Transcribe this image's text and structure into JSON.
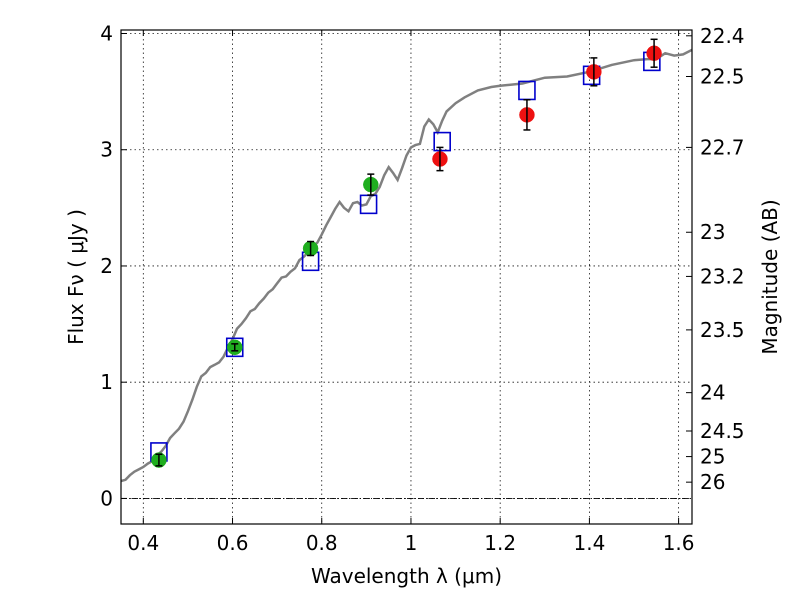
{
  "chart_data": {
    "type": "scatter",
    "title": "",
    "xlabel": "Wavelength  λ (μm)",
    "ylabel": "Flux  Fν  ( μJy )",
    "ylabel_right": "Magnitude (AB)",
    "xlim": [
      0.35,
      1.63
    ],
    "ylim": [
      -0.22,
      4.03
    ],
    "grid": true,
    "x_ticks": [
      0.4,
      0.6,
      0.8,
      1.0,
      1.2,
      1.4,
      1.6
    ],
    "x_tick_labels": [
      "0.4",
      "0.6",
      "0.8",
      "1",
      "1.2",
      "1.4",
      "1.6"
    ],
    "y_ticks": [
      0,
      1,
      2,
      3,
      4
    ],
    "y_tick_labels": [
      "0",
      "1",
      "2",
      "3",
      "4"
    ],
    "right_ticks": [
      {
        "label": "22.4",
        "flux": 3.98
      },
      {
        "label": "22.5",
        "flux": 3.63
      },
      {
        "label": "22.7",
        "flux": 3.02
      },
      {
        "label": "23",
        "flux": 2.29
      },
      {
        "label": "23.2",
        "flux": 1.91
      },
      {
        "label": "23.5",
        "flux": 1.45
      },
      {
        "label": "24",
        "flux": 0.91
      },
      {
        "label": "24.5",
        "flux": 0.58
      },
      {
        "label": "25",
        "flux": 0.36
      },
      {
        "label": "26",
        "flux": 0.14
      }
    ],
    "series": [
      {
        "kind": "model-spectrum",
        "color": "#808080",
        "points": [
          [
            0.35,
            0.15
          ],
          [
            0.36,
            0.16
          ],
          [
            0.37,
            0.2
          ],
          [
            0.38,
            0.23
          ],
          [
            0.39,
            0.25
          ],
          [
            0.4,
            0.27
          ],
          [
            0.41,
            0.3
          ],
          [
            0.42,
            0.32
          ],
          [
            0.43,
            0.37
          ],
          [
            0.44,
            0.4
          ],
          [
            0.45,
            0.45
          ],
          [
            0.46,
            0.52
          ],
          [
            0.47,
            0.56
          ],
          [
            0.48,
            0.6
          ],
          [
            0.49,
            0.66
          ],
          [
            0.5,
            0.75
          ],
          [
            0.51,
            0.85
          ],
          [
            0.52,
            0.96
          ],
          [
            0.53,
            1.05
          ],
          [
            0.54,
            1.08
          ],
          [
            0.55,
            1.13
          ],
          [
            0.56,
            1.15
          ],
          [
            0.57,
            1.17
          ],
          [
            0.58,
            1.22
          ],
          [
            0.59,
            1.3
          ],
          [
            0.6,
            1.37
          ],
          [
            0.61,
            1.46
          ],
          [
            0.62,
            1.5
          ],
          [
            0.63,
            1.55
          ],
          [
            0.64,
            1.61
          ],
          [
            0.65,
            1.63
          ],
          [
            0.66,
            1.68
          ],
          [
            0.67,
            1.72
          ],
          [
            0.68,
            1.77
          ],
          [
            0.69,
            1.8
          ],
          [
            0.7,
            1.85
          ],
          [
            0.71,
            1.9
          ],
          [
            0.72,
            1.91
          ],
          [
            0.73,
            1.95
          ],
          [
            0.74,
            1.98
          ],
          [
            0.75,
            2.05
          ],
          [
            0.76,
            2.08
          ],
          [
            0.77,
            2.12
          ],
          [
            0.78,
            2.17
          ],
          [
            0.79,
            2.2
          ],
          [
            0.8,
            2.27
          ],
          [
            0.81,
            2.35
          ],
          [
            0.82,
            2.42
          ],
          [
            0.83,
            2.49
          ],
          [
            0.84,
            2.55
          ],
          [
            0.85,
            2.5
          ],
          [
            0.86,
            2.47
          ],
          [
            0.87,
            2.54
          ],
          [
            0.88,
            2.55
          ],
          [
            0.89,
            2.52
          ],
          [
            0.9,
            2.53
          ],
          [
            0.91,
            2.6
          ],
          [
            0.92,
            2.62
          ],
          [
            0.93,
            2.68
          ],
          [
            0.94,
            2.78
          ],
          [
            0.95,
            2.85
          ],
          [
            0.96,
            2.8
          ],
          [
            0.97,
            2.74
          ],
          [
            0.98,
            2.84
          ],
          [
            0.99,
            2.95
          ],
          [
            1.0,
            3.02
          ],
          [
            1.01,
            3.04
          ],
          [
            1.02,
            3.05
          ],
          [
            1.03,
            3.2
          ],
          [
            1.04,
            3.26
          ],
          [
            1.05,
            3.22
          ],
          [
            1.06,
            3.15
          ],
          [
            1.07,
            3.25
          ],
          [
            1.08,
            3.33
          ],
          [
            1.1,
            3.4
          ],
          [
            1.12,
            3.45
          ],
          [
            1.15,
            3.51
          ],
          [
            1.18,
            3.54
          ],
          [
            1.2,
            3.55
          ],
          [
            1.25,
            3.57
          ],
          [
            1.3,
            3.62
          ],
          [
            1.35,
            3.63
          ],
          [
            1.4,
            3.67
          ],
          [
            1.45,
            3.73
          ],
          [
            1.5,
            3.77
          ],
          [
            1.53,
            3.78
          ],
          [
            1.55,
            3.78
          ],
          [
            1.57,
            3.83
          ],
          [
            1.59,
            3.81
          ],
          [
            1.61,
            3.82
          ],
          [
            1.63,
            3.86
          ]
        ]
      },
      {
        "kind": "model-photometry",
        "color": "#0000cc",
        "marker": "open-square",
        "points": [
          [
            0.435,
            0.4
          ],
          [
            0.605,
            1.3
          ],
          [
            0.775,
            2.04
          ],
          [
            0.905,
            2.53
          ],
          [
            1.07,
            3.07
          ],
          [
            1.26,
            3.51
          ],
          [
            1.405,
            3.64
          ],
          [
            1.54,
            3.76
          ]
        ]
      },
      {
        "kind": "observed-green",
        "color": "#1fae1f",
        "marker": "filled-circle",
        "points": [
          {
            "x": 0.435,
            "y": 0.33,
            "err": 0.05
          },
          {
            "x": 0.605,
            "y": 1.3,
            "err": 0.03
          },
          {
            "x": 0.775,
            "y": 2.15,
            "err": 0.06
          },
          {
            "x": 0.91,
            "y": 2.7,
            "err": 0.09
          }
        ]
      },
      {
        "kind": "observed-red",
        "color": "#ee1111",
        "marker": "filled-circle",
        "points": [
          {
            "x": 1.065,
            "y": 2.92,
            "err": 0.1
          },
          {
            "x": 1.26,
            "y": 3.3,
            "err": 0.13
          },
          {
            "x": 1.41,
            "y": 3.67,
            "err": 0.12
          },
          {
            "x": 1.545,
            "y": 3.83,
            "err": 0.12
          }
        ]
      }
    ]
  }
}
